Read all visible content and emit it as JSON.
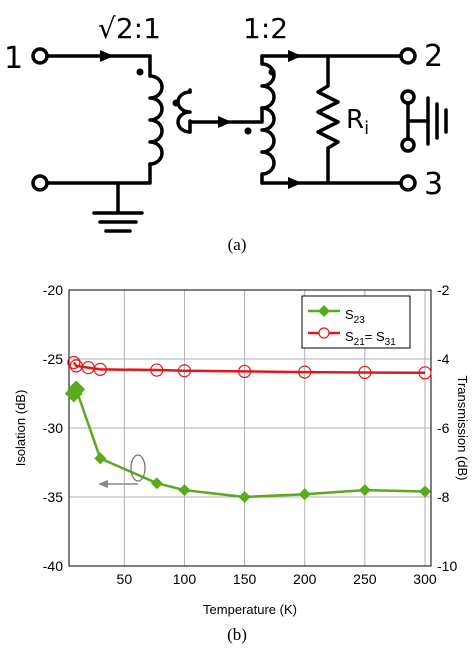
{
  "schematic": {
    "ratio_left": "√2:1",
    "ratio_right": "1:2",
    "port1": "1",
    "port2": "2",
    "port3": "3",
    "resistor_label": "R",
    "resistor_sub": "i",
    "caption": "(a)"
  },
  "chart_caption": "(b)",
  "chart_data": {
    "type": "line",
    "xlabel": "Temperature (K)",
    "ylabel_left": "Isolation (dB)",
    "ylabel_right": "Transmission (dB)",
    "xlim": [
      4,
      305
    ],
    "ylim_left": [
      -40,
      -20
    ],
    "ylim_right": [
      -10,
      -2
    ],
    "x_ticks": [
      "50",
      "100",
      "150",
      "200",
      "250",
      "300"
    ],
    "x_tick_values": [
      50,
      100,
      150,
      200,
      250,
      300
    ],
    "y_left_ticks": [
      "-20",
      "-25",
      "-30",
      "-35",
      "-40"
    ],
    "y_left_tick_values": [
      -20,
      -25,
      -30,
      -35,
      -40
    ],
    "y_right_ticks": [
      "-2",
      "-4",
      "-6",
      "-8",
      "-10"
    ],
    "y_right_tick_values": [
      -2,
      -4,
      -6,
      -8,
      -10
    ],
    "grid": true,
    "legend_position": "top-right",
    "series": [
      {
        "name": "S23",
        "name_main": "S",
        "name_sub": "23",
        "axis": "left",
        "color": "#5aaa1e",
        "marker": "filled-diamond",
        "x": [
          8,
          10,
          30,
          77,
          100,
          150,
          200,
          250,
          300
        ],
        "y": [
          -27.5,
          -27.2,
          -32.2,
          -34.0,
          -34.5,
          -35.0,
          -34.8,
          -34.5,
          -34.6
        ]
      },
      {
        "name": "S21= S31",
        "name_parts": [
          "S",
          "21",
          "= S",
          "31"
        ],
        "axis": "right",
        "color": "#e0181e",
        "marker": "open-circle",
        "x": [
          8,
          10,
          20,
          30,
          77,
          100,
          150,
          200,
          250,
          300
        ],
        "y": [
          -4.1,
          -4.2,
          -4.25,
          -4.3,
          -4.32,
          -4.34,
          -4.36,
          -4.38,
          -4.39,
          -4.4
        ]
      }
    ]
  }
}
